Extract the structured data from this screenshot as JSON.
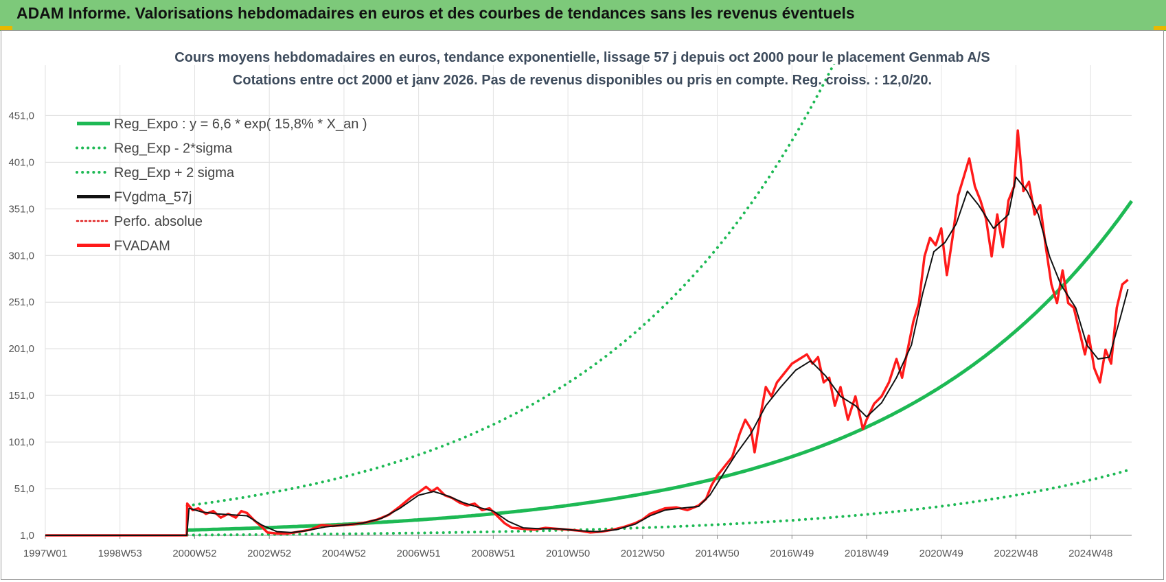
{
  "header": {
    "title": "ADAM Informe. Valorisations hebdomadaires en euros et des courbes de tendances sans les revenus éventuels"
  },
  "colors": {
    "banner": "#7dc97a",
    "reg_green": "#1db954",
    "fvadam_red": "#ff1a1a",
    "fvgdma_black": "#111111",
    "perfo_red": "#e02020"
  },
  "chart_data": {
    "type": "line",
    "subtitle_line1": "Cours moyens hebdomadaires en euros, tendance exponentielle, lissage 57 j depuis oct 2000 pour le placement Genmab A/S",
    "subtitle_line2": "Cotations entre oct 2000 et janv 2026. Pas de revenus disponibles ou pris en compte. Reg. croiss. : 12,0/20.",
    "x_range": [
      1997.0,
      2026.1
    ],
    "ylim": [
      1,
      505
    ],
    "y_ticks": [
      "1,0",
      "51,0",
      "101,0",
      "151,0",
      "201,0",
      "251,0",
      "301,0",
      "351,0",
      "401,0",
      "451,0"
    ],
    "y_tick_values": [
      1,
      51,
      101,
      151,
      201,
      251,
      301,
      351,
      401,
      451
    ],
    "x_ticks": [
      "1997W01",
      "1998W53",
      "2000W52",
      "2002W52",
      "2004W52",
      "2006W51",
      "2008W51",
      "2010W50",
      "2012W50",
      "2014W50",
      "2016W49",
      "2018W49",
      "2020W49",
      "2022W48",
      "2024W48"
    ],
    "x_tick_values": [
      1997.0,
      1999.0,
      2001.0,
      2003.0,
      2005.0,
      2007.0,
      2009.0,
      2011.0,
      2013.0,
      2015.0,
      2017.0,
      2019.0,
      2021.0,
      2023.0,
      2025.0
    ],
    "grid": true,
    "legend_position": "top-left",
    "legend": [
      {
        "label": "Reg_Expo : y = 6,6 * exp( 15,8% *  X_an )",
        "color": "#1db954",
        "style": "solid"
      },
      {
        "label": "Reg_Exp - 2*sigma",
        "color": "#1db954",
        "style": "dotted"
      },
      {
        "label": "Reg_Exp + 2 sigma",
        "color": "#1db954",
        "style": "dotted"
      },
      {
        "label": "FVgdma_57j",
        "color": "#111111",
        "style": "solid"
      },
      {
        "label": "Perfo. absolue",
        "color": "#e02020",
        "style": "dotted"
      },
      {
        "label": "FVADAM",
        "color": "#ff1a1a",
        "style": "solid"
      }
    ],
    "reg_expo": {
      "a": 6.6,
      "rate": 0.158,
      "start": 2000.8,
      "end": 2026.1
    },
    "reg_upper_factor": 4.97,
    "reg_lower_factor": 0.2,
    "fvadam": [
      [
        1997.0,
        1
      ],
      [
        2000.79,
        1
      ],
      [
        2000.8,
        35
      ],
      [
        2000.95,
        28
      ],
      [
        2001.1,
        30
      ],
      [
        2001.3,
        24
      ],
      [
        2001.5,
        27
      ],
      [
        2001.7,
        20
      ],
      [
        2001.9,
        24
      ],
      [
        2002.1,
        20
      ],
      [
        2002.25,
        27
      ],
      [
        2002.4,
        25
      ],
      [
        2002.6,
        17
      ],
      [
        2002.8,
        10
      ],
      [
        2002.95,
        4
      ],
      [
        2003.2,
        3
      ],
      [
        2003.5,
        3
      ],
      [
        2003.8,
        5
      ],
      [
        2004.1,
        7
      ],
      [
        2004.4,
        12
      ],
      [
        2004.7,
        11
      ],
      [
        2005.0,
        12
      ],
      [
        2005.3,
        13
      ],
      [
        2005.6,
        15
      ],
      [
        2005.9,
        18
      ],
      [
        2006.2,
        23
      ],
      [
        2006.5,
        32
      ],
      [
        2006.8,
        42
      ],
      [
        2007.0,
        47
      ],
      [
        2007.2,
        53
      ],
      [
        2007.35,
        48
      ],
      [
        2007.5,
        52
      ],
      [
        2007.7,
        44
      ],
      [
        2007.9,
        41
      ],
      [
        2008.1,
        36
      ],
      [
        2008.3,
        33
      ],
      [
        2008.5,
        35
      ],
      [
        2008.7,
        28
      ],
      [
        2008.9,
        30
      ],
      [
        2009.1,
        22
      ],
      [
        2009.3,
        14
      ],
      [
        2009.5,
        9
      ],
      [
        2009.8,
        8
      ],
      [
        2010.1,
        7
      ],
      [
        2010.4,
        9
      ],
      [
        2010.7,
        8
      ],
      [
        2011.0,
        7
      ],
      [
        2011.3,
        6
      ],
      [
        2011.6,
        4
      ],
      [
        2011.9,
        5
      ],
      [
        2012.2,
        7
      ],
      [
        2012.5,
        10
      ],
      [
        2012.8,
        14
      ],
      [
        2013.0,
        18
      ],
      [
        2013.2,
        24
      ],
      [
        2013.4,
        27
      ],
      [
        2013.6,
        30
      ],
      [
        2013.9,
        31
      ],
      [
        2014.2,
        28
      ],
      [
        2014.5,
        33
      ],
      [
        2014.7,
        40
      ],
      [
        2014.85,
        55
      ],
      [
        2015.0,
        65
      ],
      [
        2015.2,
        75
      ],
      [
        2015.4,
        85
      ],
      [
        2015.6,
        110
      ],
      [
        2015.75,
        125
      ],
      [
        2015.9,
        115
      ],
      [
        2016.0,
        90
      ],
      [
        2016.15,
        128
      ],
      [
        2016.3,
        160
      ],
      [
        2016.45,
        150
      ],
      [
        2016.6,
        165
      ],
      [
        2016.8,
        175
      ],
      [
        2017.0,
        185
      ],
      [
        2017.2,
        190
      ],
      [
        2017.4,
        195
      ],
      [
        2017.55,
        185
      ],
      [
        2017.7,
        192
      ],
      [
        2017.85,
        165
      ],
      [
        2018.0,
        170
      ],
      [
        2018.15,
        140
      ],
      [
        2018.3,
        160
      ],
      [
        2018.5,
        125
      ],
      [
        2018.7,
        150
      ],
      [
        2018.9,
        115
      ],
      [
        2019.0,
        125
      ],
      [
        2019.2,
        142
      ],
      [
        2019.4,
        150
      ],
      [
        2019.6,
        165
      ],
      [
        2019.8,
        190
      ],
      [
        2019.95,
        170
      ],
      [
        2020.1,
        200
      ],
      [
        2020.25,
        230
      ],
      [
        2020.4,
        250
      ],
      [
        2020.55,
        300
      ],
      [
        2020.7,
        320
      ],
      [
        2020.85,
        312
      ],
      [
        2021.0,
        330
      ],
      [
        2021.15,
        280
      ],
      [
        2021.3,
        320
      ],
      [
        2021.45,
        365
      ],
      [
        2021.6,
        385
      ],
      [
        2021.75,
        405
      ],
      [
        2021.9,
        375
      ],
      [
        2022.05,
        360
      ],
      [
        2022.2,
        340
      ],
      [
        2022.35,
        300
      ],
      [
        2022.5,
        345
      ],
      [
        2022.65,
        310
      ],
      [
        2022.8,
        360
      ],
      [
        2022.95,
        375
      ],
      [
        2023.05,
        435
      ],
      [
        2023.2,
        370
      ],
      [
        2023.35,
        380
      ],
      [
        2023.5,
        345
      ],
      [
        2023.65,
        355
      ],
      [
        2023.8,
        310
      ],
      [
        2023.95,
        270
      ],
      [
        2024.1,
        250
      ],
      [
        2024.25,
        285
      ],
      [
        2024.4,
        250
      ],
      [
        2024.55,
        245
      ],
      [
        2024.7,
        220
      ],
      [
        2024.85,
        195
      ],
      [
        2024.95,
        215
      ],
      [
        2025.1,
        180
      ],
      [
        2025.25,
        165
      ],
      [
        2025.4,
        200
      ],
      [
        2025.55,
        185
      ],
      [
        2025.7,
        245
      ],
      [
        2025.85,
        270
      ],
      [
        2026.0,
        275
      ]
    ],
    "fvgdma": [
      [
        1997.0,
        1
      ],
      [
        2000.79,
        1
      ],
      [
        2000.85,
        30
      ],
      [
        2001.2,
        26
      ],
      [
        2001.6,
        24
      ],
      [
        2002.0,
        23
      ],
      [
        2002.4,
        22
      ],
      [
        2002.8,
        12
      ],
      [
        2003.2,
        5
      ],
      [
        2003.6,
        4
      ],
      [
        2004.0,
        6
      ],
      [
        2004.5,
        10
      ],
      [
        2005.0,
        12
      ],
      [
        2005.5,
        14
      ],
      [
        2006.0,
        19
      ],
      [
        2006.5,
        30
      ],
      [
        2007.0,
        44
      ],
      [
        2007.4,
        48
      ],
      [
        2007.8,
        43
      ],
      [
        2008.2,
        36
      ],
      [
        2008.6,
        31
      ],
      [
        2009.0,
        27
      ],
      [
        2009.4,
        16
      ],
      [
        2009.8,
        9
      ],
      [
        2010.3,
        8
      ],
      [
        2010.8,
        8
      ],
      [
        2011.3,
        6
      ],
      [
        2011.8,
        5
      ],
      [
        2012.3,
        7
      ],
      [
        2012.8,
        13
      ],
      [
        2013.2,
        22
      ],
      [
        2013.6,
        28
      ],
      [
        2014.0,
        30
      ],
      [
        2014.5,
        32
      ],
      [
        2014.8,
        44
      ],
      [
        2015.1,
        63
      ],
      [
        2015.5,
        88
      ],
      [
        2015.9,
        110
      ],
      [
        2016.3,
        140
      ],
      [
        2016.7,
        160
      ],
      [
        2017.1,
        178
      ],
      [
        2017.5,
        188
      ],
      [
        2017.9,
        172
      ],
      [
        2018.3,
        150
      ],
      [
        2018.7,
        140
      ],
      [
        2019.0,
        128
      ],
      [
        2019.4,
        143
      ],
      [
        2019.8,
        170
      ],
      [
        2020.2,
        205
      ],
      [
        2020.5,
        260
      ],
      [
        2020.8,
        305
      ],
      [
        2021.1,
        315
      ],
      [
        2021.4,
        335
      ],
      [
        2021.7,
        370
      ],
      [
        2022.0,
        355
      ],
      [
        2022.4,
        330
      ],
      [
        2022.8,
        345
      ],
      [
        2023.0,
        385
      ],
      [
        2023.3,
        370
      ],
      [
        2023.6,
        345
      ],
      [
        2023.9,
        300
      ],
      [
        2024.2,
        270
      ],
      [
        2024.6,
        245
      ],
      [
        2024.9,
        205
      ],
      [
        2025.2,
        190
      ],
      [
        2025.5,
        192
      ],
      [
        2025.8,
        235
      ],
      [
        2026.0,
        265
      ]
    ]
  }
}
